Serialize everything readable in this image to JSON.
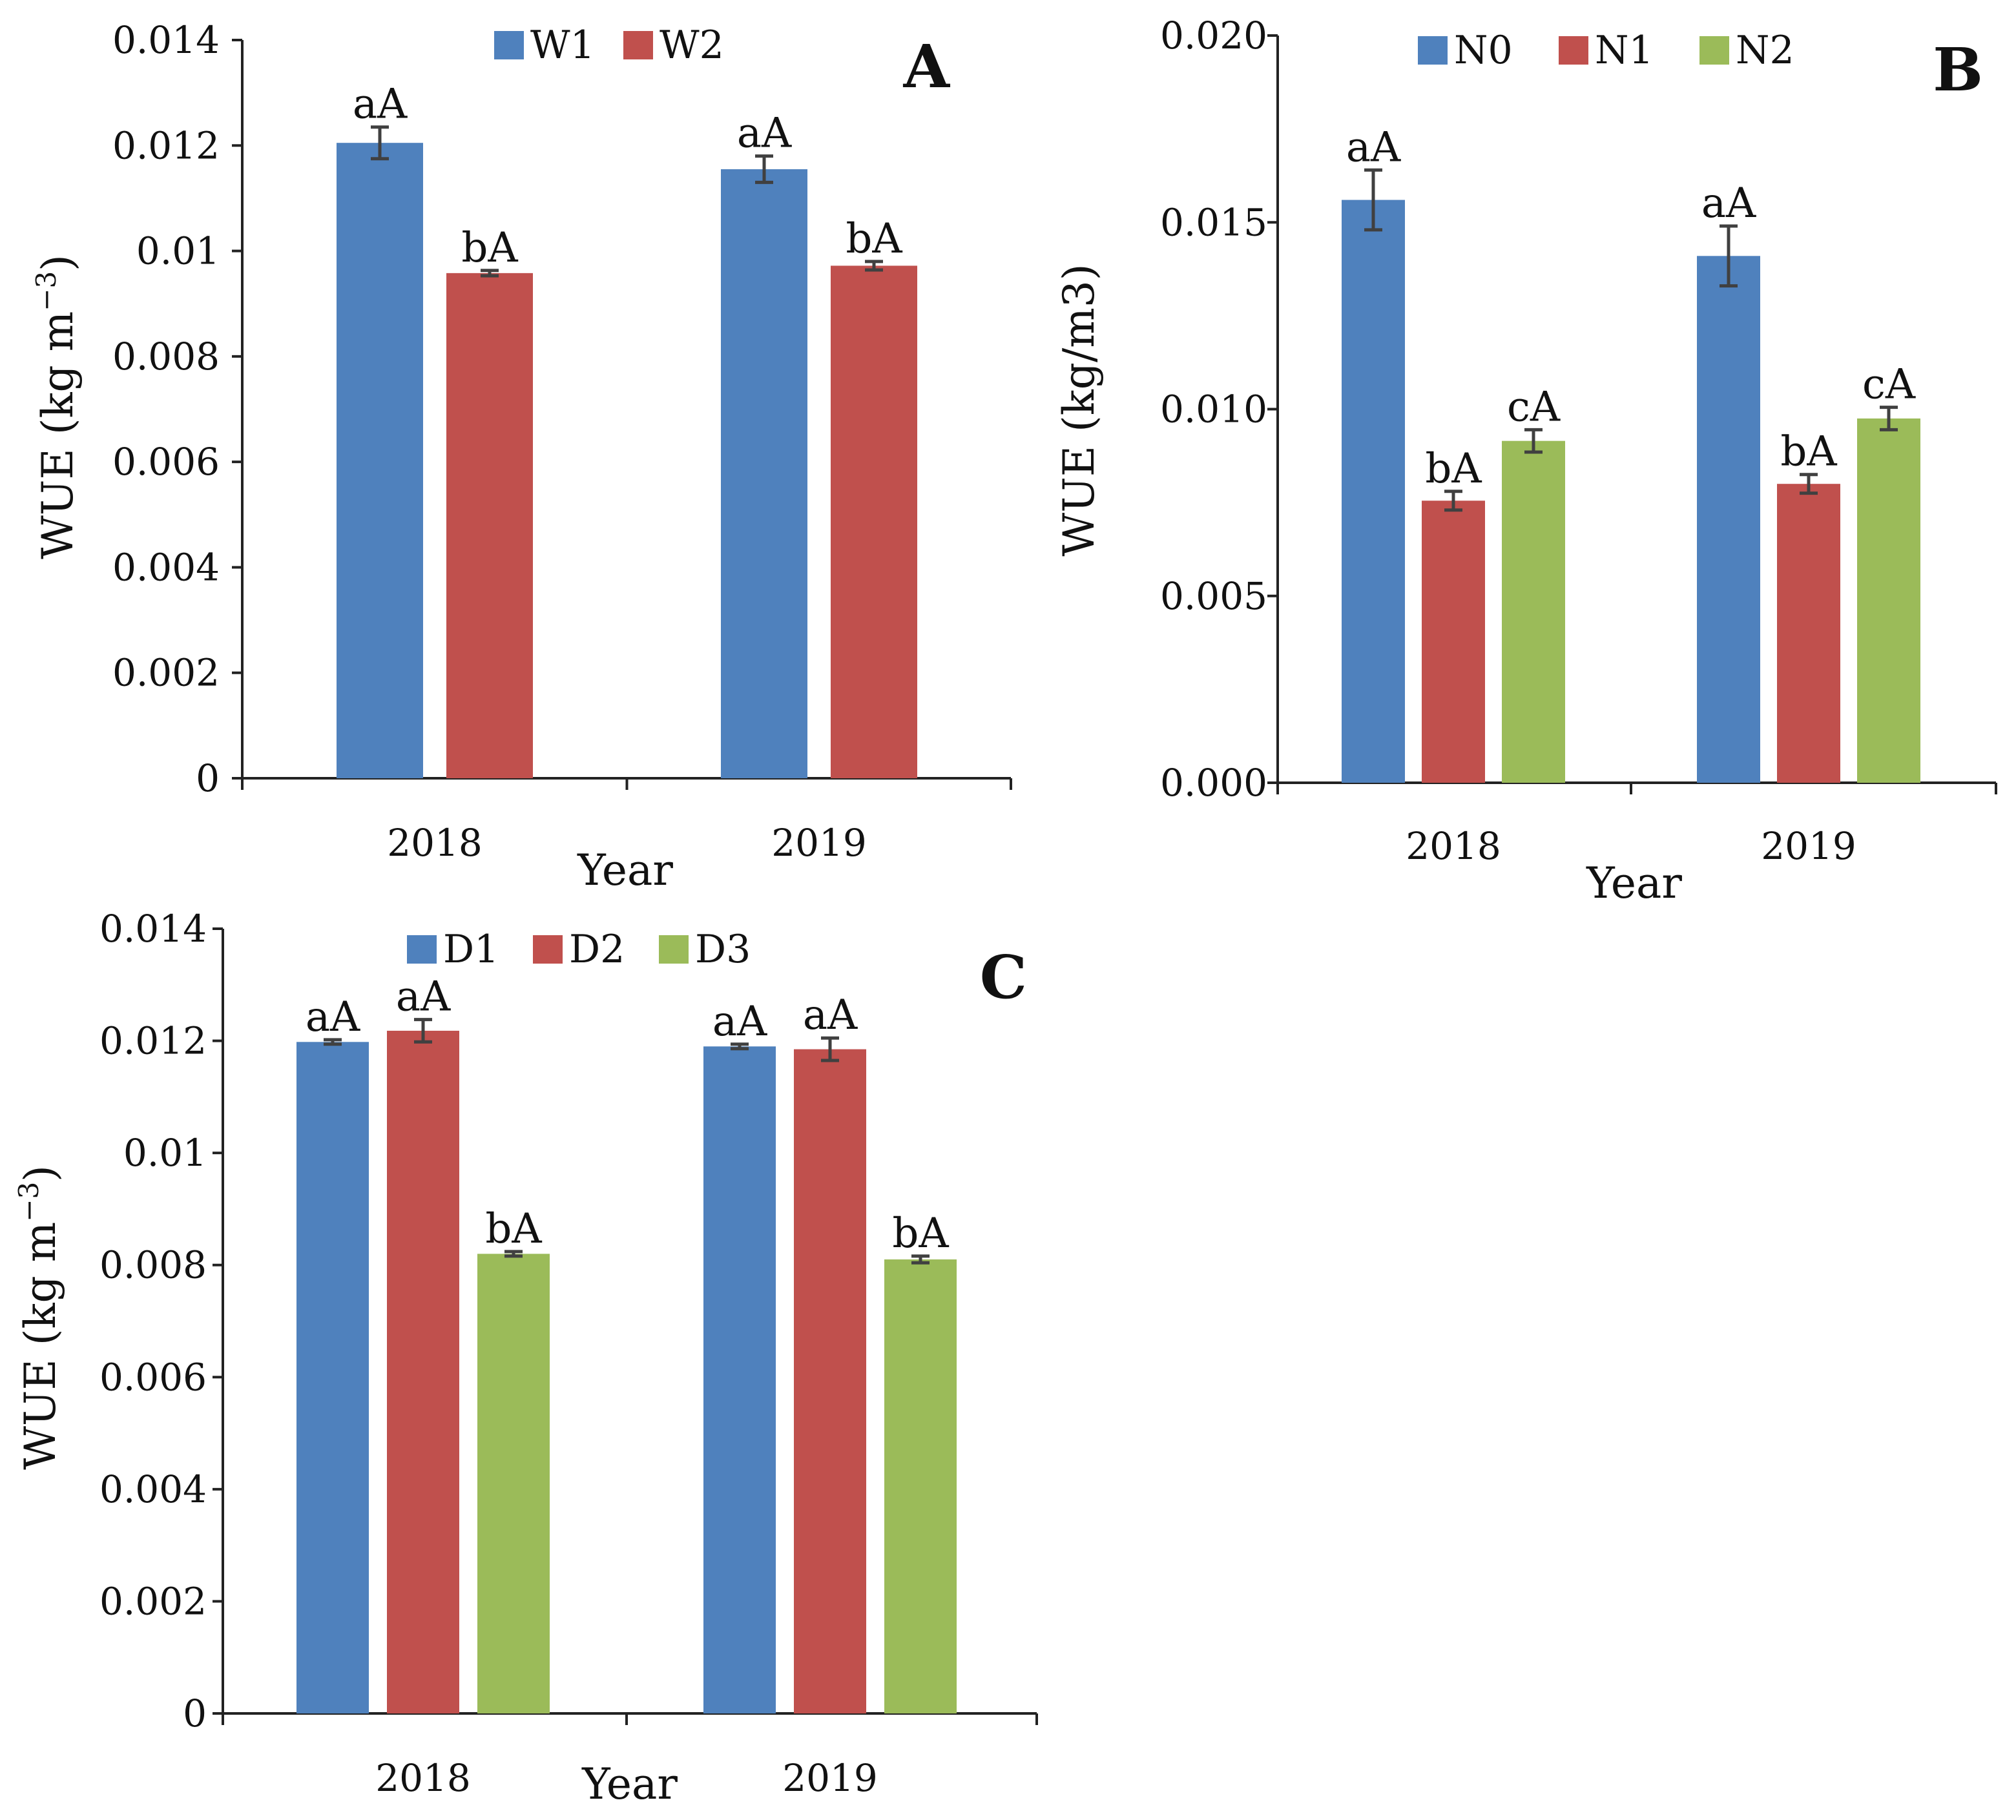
{
  "figure": {
    "panels": [
      {
        "letter": "A"
      },
      {
        "letter": "B"
      },
      {
        "letter": "C"
      }
    ]
  },
  "chart_data": [
    {
      "type": "bar",
      "panel": "A",
      "xlabel": "Year",
      "ylabel": "WUE (kg m",
      "ylabel_sup": "−3",
      "ylabel_close": ")",
      "categories": [
        "2018",
        "2019"
      ],
      "ylim": [
        0,
        0.014
      ],
      "yticks": [
        0,
        0.002,
        0.004,
        0.006,
        0.008,
        0.01,
        0.012,
        0.014
      ],
      "ytick_labels": [
        "0",
        "0.002",
        "0.004",
        "0.006",
        "0.008",
        "0.01",
        "0.012",
        "0.014"
      ],
      "legend_position": "top",
      "series": [
        {
          "name": "W1",
          "color": "#4f81bd",
          "values": [
            0.01205,
            0.01155
          ],
          "errors": [
            0.0003,
            0.00025
          ],
          "labels": [
            "aA",
            "aA"
          ]
        },
        {
          "name": "W2",
          "color": "#c0504d",
          "values": [
            0.00958,
            0.00972
          ],
          "errors": [
            5e-05,
            8e-05
          ],
          "labels": [
            "bA",
            "bA"
          ]
        }
      ]
    },
    {
      "type": "bar",
      "panel": "B",
      "xlabel": "Year",
      "ylabel": "WUE (kg/m3)",
      "categories": [
        "2018",
        "2019"
      ],
      "ylim": [
        0,
        0.02
      ],
      "yticks": [
        0,
        0.005,
        0.01,
        0.015,
        0.02
      ],
      "ytick_labels": [
        "0.000",
        "0.005",
        "0.010",
        "0.015",
        "0.020"
      ],
      "legend_position": "top",
      "series": [
        {
          "name": "N0",
          "color": "#4f81bd",
          "values": [
            0.0156,
            0.0141
          ],
          "errors": [
            0.0008,
            0.0008
          ],
          "labels": [
            "aA",
            "aA"
          ]
        },
        {
          "name": "N1",
          "color": "#c0504d",
          "values": [
            0.00755,
            0.008
          ],
          "errors": [
            0.00025,
            0.00025
          ],
          "labels": [
            "bA",
            "bA"
          ]
        },
        {
          "name": "N2",
          "color": "#9bbb59",
          "values": [
            0.00915,
            0.00975
          ],
          "errors": [
            0.0003,
            0.0003
          ],
          "labels": [
            "cA",
            "cA"
          ]
        }
      ]
    },
    {
      "type": "bar",
      "panel": "C",
      "xlabel": "Year",
      "ylabel": "WUE (kg m",
      "ylabel_sup": "−3",
      "ylabel_close": ")",
      "categories": [
        "2018",
        "2019"
      ],
      "ylim": [
        0,
        0.014
      ],
      "yticks": [
        0,
        0.002,
        0.004,
        0.006,
        0.008,
        0.01,
        0.012,
        0.014
      ],
      "ytick_labels": [
        "0",
        "0.002",
        "0.004",
        "0.006",
        "0.008",
        "0.01",
        "0.012",
        "0.014"
      ],
      "legend_position": "top",
      "series": [
        {
          "name": "D1",
          "color": "#4f81bd",
          "values": [
            0.01198,
            0.0119
          ],
          "errors": [
            4e-05,
            4e-05
          ],
          "labels": [
            "aA",
            "aA"
          ]
        },
        {
          "name": "D2",
          "color": "#c0504d",
          "values": [
            0.01218,
            0.01185
          ],
          "errors": [
            0.0002,
            0.0002
          ],
          "labels": [
            "aA",
            "aA"
          ]
        },
        {
          "name": "D3",
          "color": "#9bbb59",
          "values": [
            0.0082,
            0.0081
          ],
          "errors": [
            4e-05,
            6e-05
          ],
          "labels": [
            "bA",
            "bA"
          ]
        }
      ]
    }
  ]
}
